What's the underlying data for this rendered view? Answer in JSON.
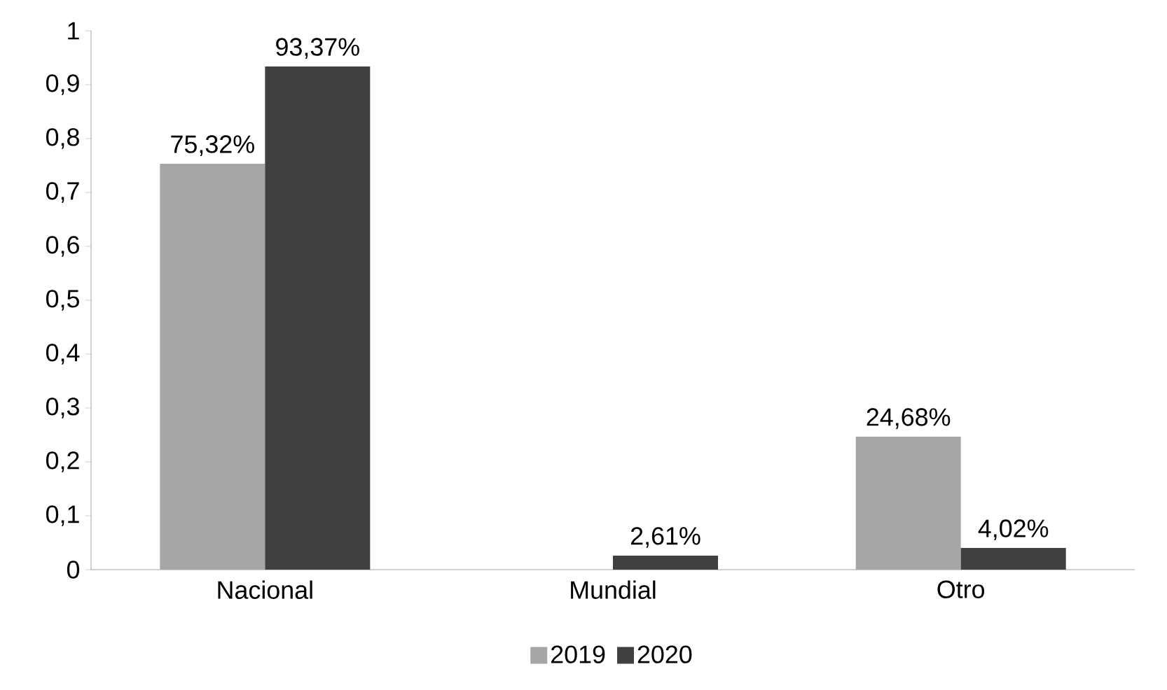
{
  "chart_data": {
    "type": "bar",
    "categories": [
      "Nacional",
      "Mundial",
      "Otro"
    ],
    "series": [
      {
        "name": "2019",
        "color": "#a6a6a6",
        "values": [
          0.7532,
          null,
          0.2468
        ],
        "value_labels": [
          "75,32%",
          null,
          "24,68%"
        ]
      },
      {
        "name": "2020",
        "color": "#404040",
        "values": [
          0.9337,
          0.0261,
          0.0402
        ],
        "value_labels": [
          "93,37%",
          "2,61%",
          "4,02%"
        ]
      }
    ],
    "ylim": [
      0,
      1
    ],
    "yticks": [
      0,
      {
        "value": 0.1,
        "label": "0,1"
      },
      {
        "value": 0.2,
        "label": "0,2"
      },
      {
        "value": 0.3,
        "label": "0,3"
      },
      {
        "value": 0.4,
        "label": "0,4"
      },
      {
        "value": 0.5,
        "label": "0,5"
      },
      {
        "value": 0.6,
        "label": "0,6"
      },
      {
        "value": 0.7,
        "label": "0,7"
      },
      {
        "value": 0.8,
        "label": "0,8"
      },
      {
        "value": 0.9,
        "label": "0,9"
      },
      1
    ],
    "grid": false,
    "legend": "bottom"
  }
}
